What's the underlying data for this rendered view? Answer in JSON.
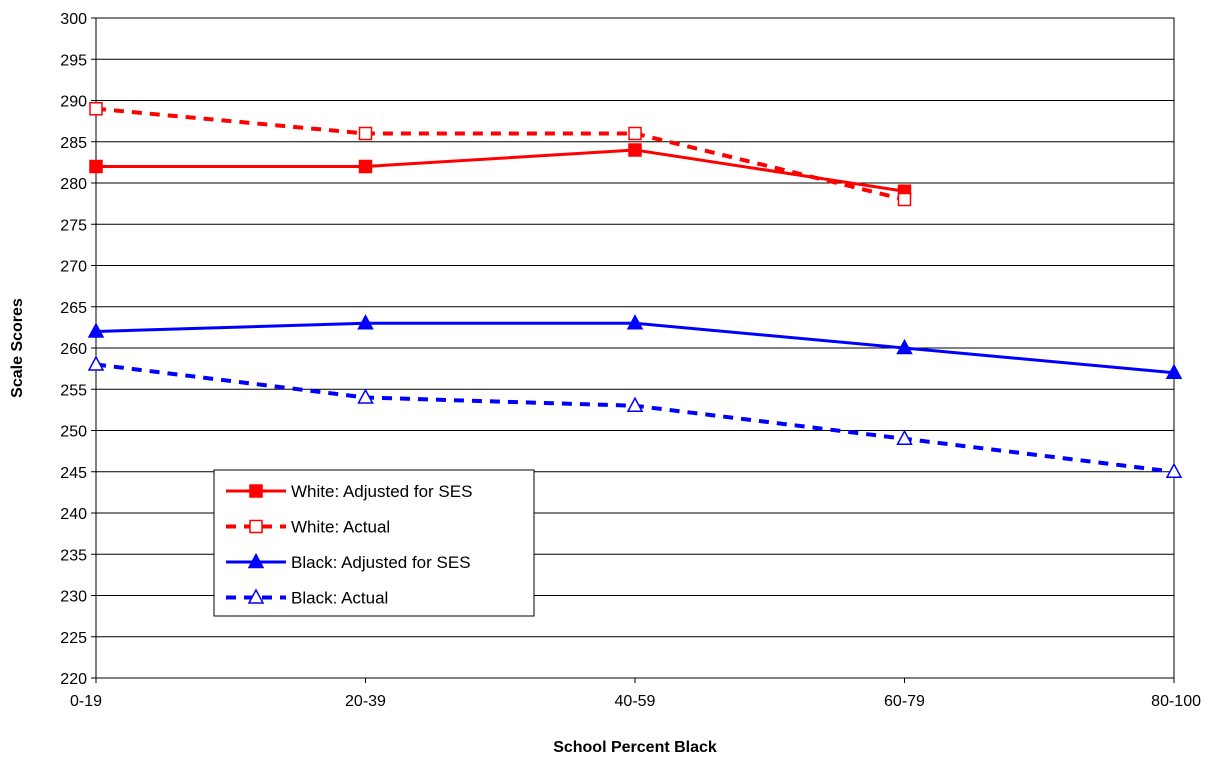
{
  "chart_data": {
    "type": "line",
    "title": "",
    "xlabel": "School Percent Black",
    "ylabel": "Scale Scores",
    "categories": [
      "0-19",
      "20-39",
      "40-59",
      "60-79",
      "80-100"
    ],
    "ylim": [
      220,
      300
    ],
    "ytick_step": 5,
    "grid": "horizontal",
    "legend_position": "lower-left",
    "series": [
      {
        "name": "White: Adjusted for SES",
        "values": [
          282,
          282,
          284,
          279,
          null
        ],
        "color": "#ff0000",
        "line_style": "solid",
        "marker": "filled-square"
      },
      {
        "name": "White: Actual",
        "values": [
          289,
          286,
          286,
          278,
          null
        ],
        "color": "#ff0000",
        "line_style": "dashed",
        "marker": "open-square"
      },
      {
        "name": "Black: Adjusted for SES",
        "values": [
          262,
          263,
          263,
          260,
          257
        ],
        "color": "#0000ff",
        "line_style": "solid",
        "marker": "filled-triangle"
      },
      {
        "name": "Black: Actual",
        "values": [
          258,
          254,
          253,
          249,
          245
        ],
        "color": "#0000ff",
        "line_style": "dashed",
        "marker": "open-triangle"
      }
    ]
  }
}
